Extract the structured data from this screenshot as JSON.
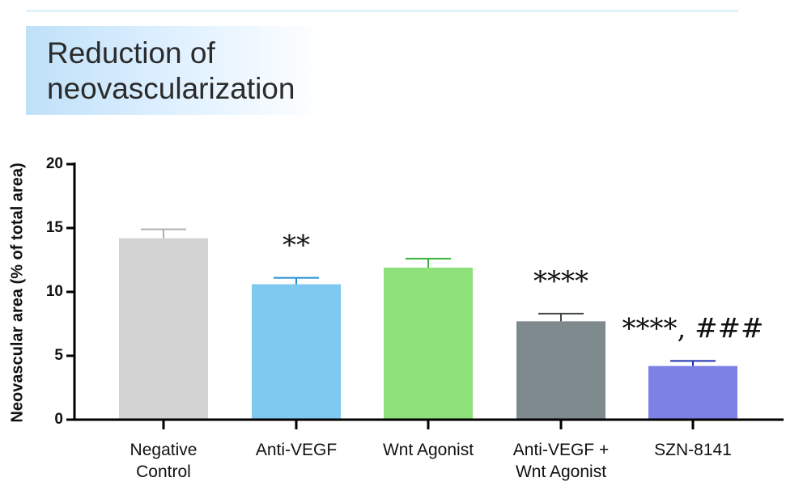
{
  "chart_data": {
    "type": "bar",
    "title": "Reduction of neovascularization",
    "y_label": "Neovascular area (% of total area)",
    "categories": [
      "Negative Control",
      "Anti-VEGF",
      "Wnt Agonist",
      "Anti-VEGF + Wnt Agonist",
      "SZN-8141"
    ],
    "values": [
      14.2,
      10.6,
      11.9,
      7.7,
      4.2
    ],
    "errors": [
      0.7,
      0.5,
      0.7,
      0.6,
      0.4
    ],
    "colors": [
      "#d3d3d3",
      "#7fc8ef",
      "#8ee07b",
      "#7f8a8f",
      "#7c81e5"
    ],
    "error_colors": [
      "#b0b0b0",
      "#1e8fd0",
      "#3cb53c",
      "#404548",
      "#1e2fae"
    ],
    "annotations": [
      null,
      "**",
      null,
      "****",
      "****, ###"
    ],
    "ylim": [
      0,
      20
    ],
    "yticks": [
      0,
      5,
      10,
      15,
      20
    ]
  }
}
